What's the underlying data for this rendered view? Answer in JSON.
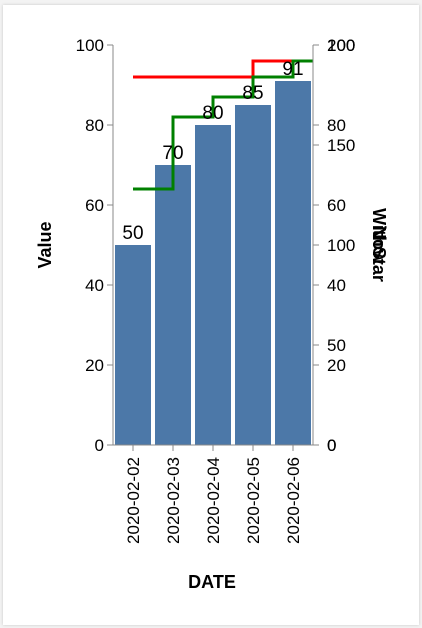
{
  "chart_data": {
    "type": "bar",
    "categories": [
      "2020-02-02",
      "2020-02-03",
      "2020-02-04",
      "2020-02-05",
      "2020-02-06"
    ],
    "values": [
      50,
      70,
      80,
      85,
      91
    ],
    "xlabel": "DATE",
    "ylabel": "Value",
    "ylim": [
      0,
      100
    ],
    "yticks": [
      0,
      20,
      40,
      60,
      80,
      100
    ],
    "bar_color": "#4c78a8",
    "right_axes": [
      {
        "label": "Now",
        "ylim": [
          0,
          100
        ],
        "ticks": [
          0,
          20,
          40,
          60,
          80,
          100
        ]
      },
      {
        "label": "WithStar",
        "ylim": [
          0,
          200
        ],
        "ticks": [
          0,
          50,
          100,
          150,
          200
        ]
      }
    ],
    "overlay_lines": [
      {
        "color": "#ff0000",
        "shape": "step",
        "axis": "Now",
        "values": [
          92,
          92,
          92,
          96,
          96
        ]
      },
      {
        "color": "#008000",
        "shape": "step",
        "axis": "Now",
        "values": [
          64,
          82,
          87,
          92,
          96
        ]
      }
    ]
  }
}
